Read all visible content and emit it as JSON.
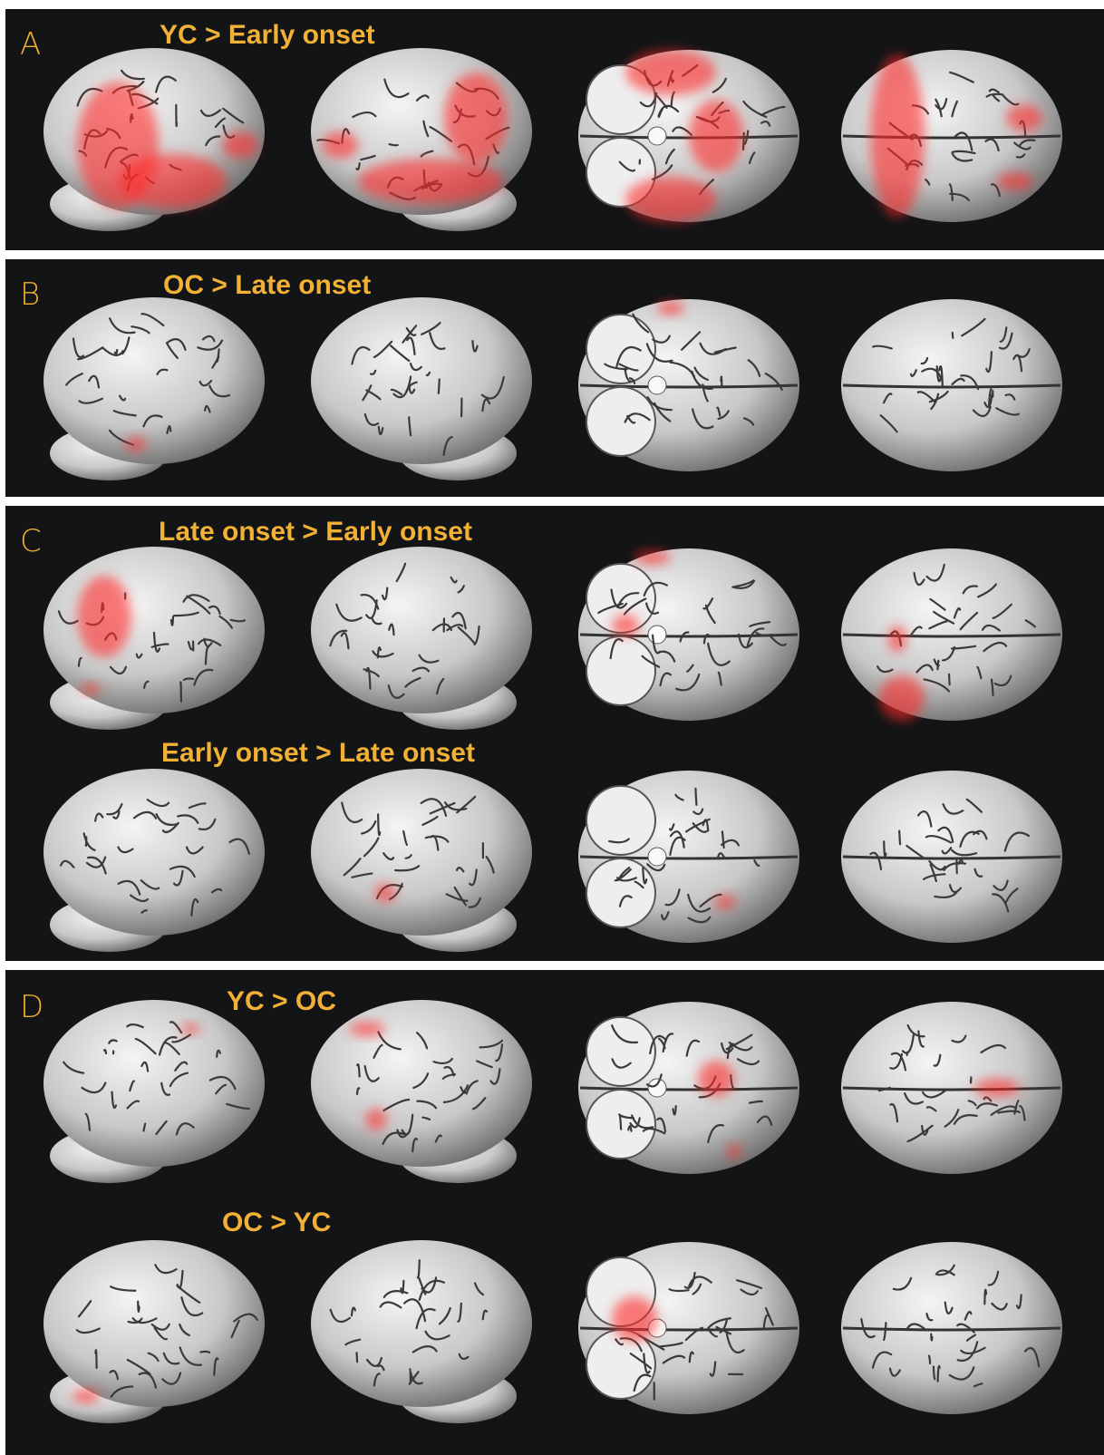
{
  "panels": [
    {
      "letter": "A",
      "titles": [
        "YC > Early onset"
      ]
    },
    {
      "letter": "B",
      "titles": [
        "OC > Late onset"
      ]
    },
    {
      "letter": "C",
      "titles": [
        "Late onset > Early onset",
        "Early onset > Late onset"
      ]
    },
    {
      "letter": "D",
      "titles": [
        "YC > OC",
        "OC > YC"
      ]
    }
  ]
}
